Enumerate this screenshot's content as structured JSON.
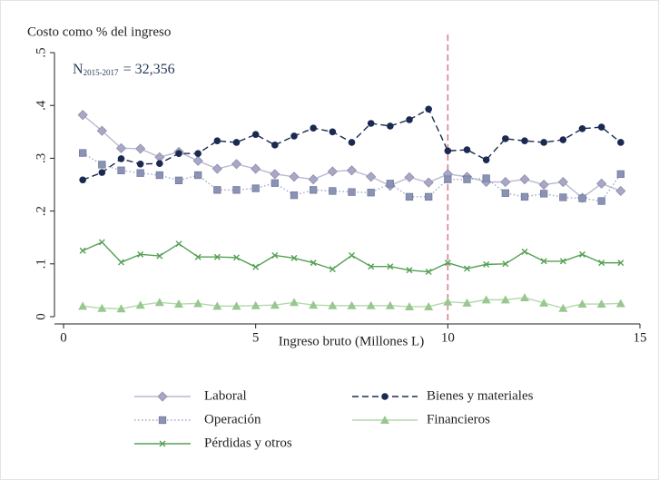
{
  "chart_data": {
    "type": "line",
    "y_title": "Costo como % del ingreso",
    "x_title": "Ingreso bruto (Millones L)",
    "annotation": {
      "main": "N",
      "subscript": "2015-2017",
      "rest": "= 32,356"
    },
    "xlim": [
      0,
      15
    ],
    "xticks": [
      0,
      5,
      10,
      15
    ],
    "ylim": [
      0,
      0.5
    ],
    "yticks": [
      0,
      {
        "value": 0.1,
        "label": ".1"
      },
      {
        "value": 0.2,
        "label": ".2"
      },
      {
        "value": 0.3,
        "label": ".3"
      },
      {
        "value": 0.4,
        "label": ".4"
      },
      {
        "value": 0.5,
        "label": ".5"
      }
    ],
    "vline": {
      "x": 10,
      "color": "#d9808f"
    },
    "legend": "bottom",
    "grid": false,
    "x": [
      0.5,
      1,
      1.5,
      2,
      2.5,
      3,
      3.5,
      4,
      4.5,
      5,
      5.5,
      6,
      6.5,
      7,
      7.5,
      8,
      8.5,
      9,
      9.5,
      10,
      10.5,
      11,
      11.5,
      12,
      12.5,
      13,
      13.5,
      14,
      14.5
    ],
    "series": [
      {
        "name": "Laboral",
        "color": "#b9b9d2",
        "marker_color": "#a8a8c6",
        "marker": "diamond",
        "dash": "solid",
        "values": [
          0.382,
          0.352,
          0.319,
          0.318,
          0.302,
          0.312,
          0.295,
          0.28,
          0.289,
          0.28,
          0.27,
          0.265,
          0.26,
          0.275,
          0.277,
          0.265,
          0.248,
          0.264,
          0.254,
          0.27,
          0.265,
          0.255,
          0.255,
          0.26,
          0.25,
          0.255,
          0.225,
          0.252,
          0.238
        ]
      },
      {
        "name": "Bienes y materiales",
        "color": "#1b2a52",
        "marker_color": "#1b2a52",
        "marker": "circle",
        "dash": "dash",
        "values": [
          0.259,
          0.273,
          0.299,
          0.289,
          0.29,
          0.309,
          0.309,
          0.333,
          0.33,
          0.345,
          0.325,
          0.342,
          0.357,
          0.35,
          0.33,
          0.366,
          0.361,
          0.373,
          0.393,
          0.314,
          0.316,
          0.297,
          0.337,
          0.333,
          0.33,
          0.335,
          0.356,
          0.359,
          0.33
        ]
      },
      {
        "name": "Operación",
        "color": "#a0a6c6",
        "marker_color": "#8b93b5",
        "marker": "square",
        "dash": "dot",
        "values": [
          0.31,
          0.288,
          0.277,
          0.272,
          0.268,
          0.258,
          0.268,
          0.24,
          0.24,
          0.243,
          0.253,
          0.23,
          0.24,
          0.238,
          0.236,
          0.235,
          0.252,
          0.227,
          0.227,
          0.26,
          0.26,
          0.262,
          0.234,
          0.227,
          0.233,
          0.226,
          0.224,
          0.219,
          0.27
        ]
      },
      {
        "name": "Financieros",
        "color": "#b4d8ac",
        "marker_color": "#98c890",
        "marker": "triangle",
        "dash": "solid",
        "values": [
          0.02,
          0.016,
          0.015,
          0.022,
          0.027,
          0.024,
          0.025,
          0.02,
          0.02,
          0.021,
          0.022,
          0.027,
          0.022,
          0.021,
          0.021,
          0.021,
          0.021,
          0.019,
          0.019,
          0.028,
          0.026,
          0.032,
          0.032,
          0.036,
          0.026,
          0.016,
          0.024,
          0.024,
          0.025
        ]
      },
      {
        "name": "Pérdidas y otros",
        "color": "#54a054",
        "marker_color": "#54a054",
        "marker": "x",
        "dash": "solid",
        "values": [
          0.125,
          0.141,
          0.103,
          0.118,
          0.115,
          0.138,
          0.113,
          0.113,
          0.112,
          0.094,
          0.116,
          0.111,
          0.102,
          0.09,
          0.116,
          0.095,
          0.095,
          0.088,
          0.085,
          0.102,
          0.091,
          0.099,
          0.1,
          0.123,
          0.105,
          0.105,
          0.118,
          0.102,
          0.102
        ]
      }
    ]
  }
}
